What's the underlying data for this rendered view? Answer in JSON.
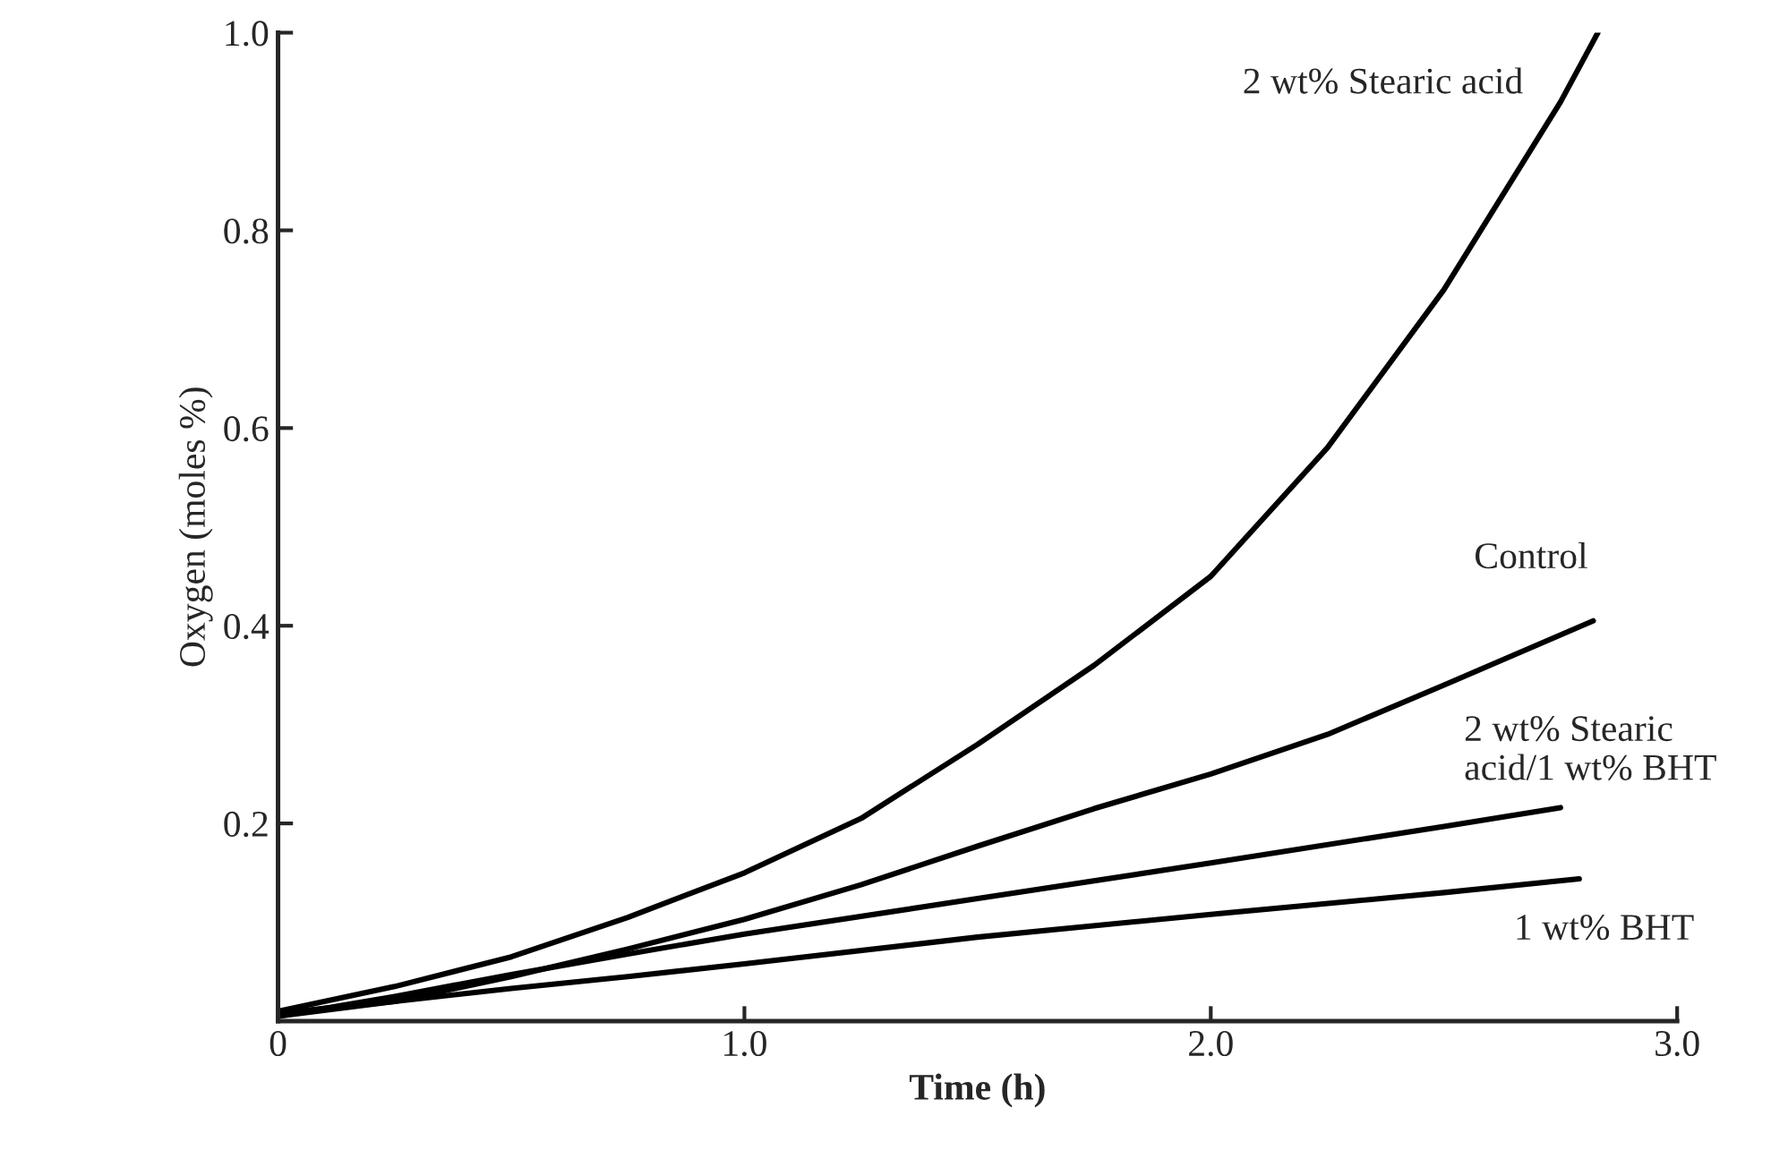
{
  "chart_data": {
    "type": "line",
    "xlabel": "Time (h)",
    "ylabel": "Oxygen (moles %)",
    "xlim": [
      0,
      3.0
    ],
    "ylim": [
      0,
      1.0
    ],
    "xticks": [
      {
        "value": 0,
        "label": "0"
      },
      {
        "value": 1.0,
        "label": "1.0"
      },
      {
        "value": 2.0,
        "label": "2.0"
      },
      {
        "value": 3.0,
        "label": "3.0"
      }
    ],
    "yticks": [
      {
        "value": 0.2,
        "label": "0.2"
      },
      {
        "value": 0.4,
        "label": "0.4"
      },
      {
        "value": 0.6,
        "label": "0.6"
      },
      {
        "value": 0.8,
        "label": "0.8"
      },
      {
        "value": 1.0,
        "label": "1.0"
      }
    ],
    "grid": false,
    "legend": false,
    "marker": "none",
    "line_style": "solid",
    "series": [
      {
        "name": "2 wt% Stearic acid",
        "color": "#000000",
        "x": [
          0,
          0.25,
          0.5,
          0.75,
          1.0,
          1.25,
          1.5,
          1.75,
          2.0,
          2.25,
          2.5,
          2.75,
          2.83
        ],
        "values": [
          0.01,
          0.035,
          0.065,
          0.105,
          0.15,
          0.205,
          0.28,
          0.36,
          0.45,
          0.58,
          0.74,
          0.93,
          1.0
        ]
      },
      {
        "name": "Control",
        "color": "#000000",
        "x": [
          0,
          0.25,
          0.5,
          0.75,
          1.0,
          1.25,
          1.5,
          1.75,
          2.0,
          2.25,
          2.5,
          2.82
        ],
        "values": [
          0.005,
          0.02,
          0.045,
          0.073,
          0.103,
          0.138,
          0.177,
          0.215,
          0.25,
          0.29,
          0.34,
          0.405
        ]
      },
      {
        "name": "2 wt% Stearic\nacid/1 wt% BHT",
        "color": "#000000",
        "x": [
          0,
          0.25,
          0.5,
          0.75,
          1.0,
          1.5,
          2.0,
          2.5,
          2.75
        ],
        "values": [
          0.005,
          0.025,
          0.047,
          0.068,
          0.088,
          0.124,
          0.16,
          0.197,
          0.216
        ]
      },
      {
        "name": "1 wt% BHT",
        "color": "#000000",
        "x": [
          0,
          0.25,
          0.5,
          0.75,
          1.0,
          1.5,
          2.0,
          2.5,
          2.79
        ],
        "values": [
          0.008,
          0.02,
          0.033,
          0.045,
          0.058,
          0.085,
          0.108,
          0.13,
          0.144
        ]
      }
    ]
  }
}
